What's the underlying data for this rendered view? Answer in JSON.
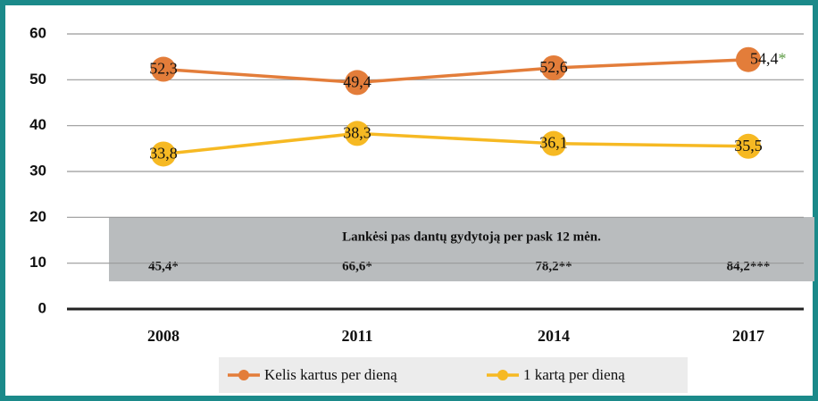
{
  "chart_data": {
    "type": "line",
    "categories": [
      "2008",
      "2011",
      "2014",
      "2017"
    ],
    "series": [
      {
        "name": "Kelis kartus per dieną",
        "color": "#e37d3a",
        "values": [
          52.3,
          49.4,
          52.6,
          54.4
        ],
        "value_labels": [
          "52,3",
          "49,4",
          "52,6",
          "54,4"
        ],
        "value_notes": [
          null,
          null,
          null,
          "*"
        ],
        "note_color": "#5e9b46"
      },
      {
        "name": "1 kartą per dieną",
        "color": "#f6b923",
        "values": [
          33.8,
          38.3,
          36.1,
          35.5
        ],
        "value_labels": [
          "33,8",
          "38,3",
          "36,1",
          "35,5"
        ]
      }
    ],
    "ylim": [
      0,
      60
    ],
    "yticks": [
      0,
      10,
      20,
      30,
      40,
      50,
      60
    ],
    "grid": true,
    "annotation": {
      "title": "Lankėsi pas dantų gydytoją per pask 12 mėn.",
      "values": [
        "45,4*",
        "66,6*",
        "78,2**",
        "84,2***"
      ],
      "color": "#b9bcbe"
    },
    "legend": "bottom"
  }
}
